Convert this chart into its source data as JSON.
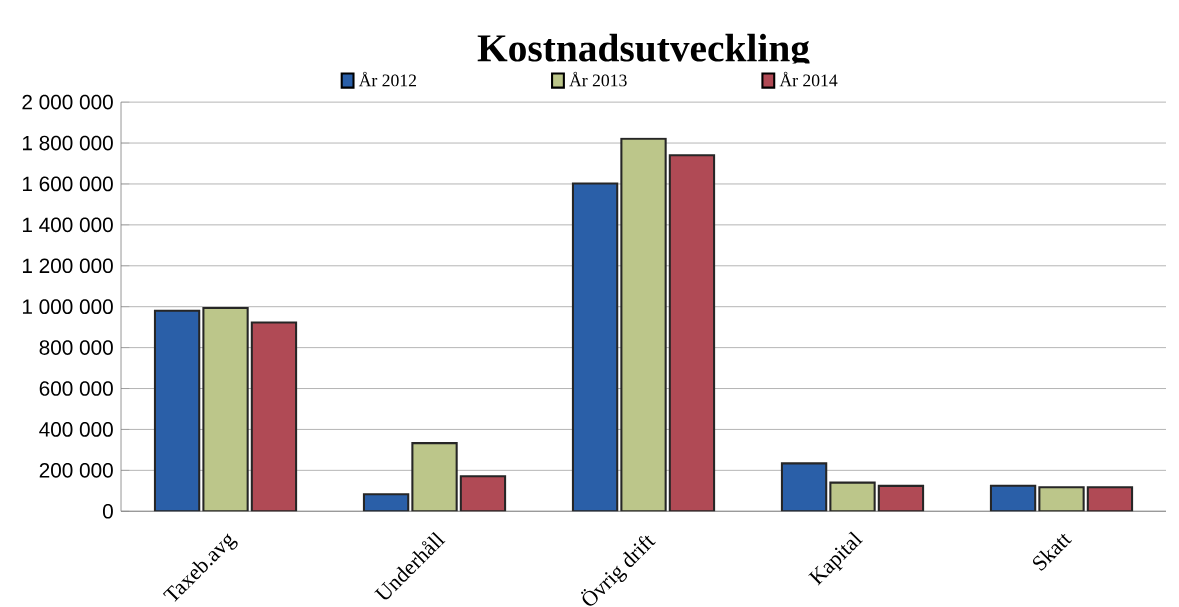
{
  "chart_data": {
    "type": "bar",
    "title": "Kostnadsutveckling",
    "categories": [
      "Taxeb.avg",
      "Underhåll",
      "Övrig drift",
      "Kapital",
      "Skatt"
    ],
    "series": [
      {
        "name": "År 2012",
        "color": "#2a5fa8",
        "values": [
          980000,
          83000,
          1602000,
          234000,
          125000
        ]
      },
      {
        "name": "År 2013",
        "color": "#bcc68a",
        "values": [
          994000,
          333000,
          1821000,
          140000,
          117000
        ]
      },
      {
        "name": "År 2014",
        "color": "#b04a55",
        "values": [
          923000,
          171000,
          1740000,
          124000,
          117000
        ]
      }
    ],
    "ylim": [
      0,
      2000000
    ],
    "yticks": [
      {
        "value": 0,
        "label": "0"
      },
      {
        "value": 200000,
        "label": "200 000"
      },
      {
        "value": 400000,
        "label": "400 000"
      },
      {
        "value": 600000,
        "label": "600 000"
      },
      {
        "value": 800000,
        "label": "800 000"
      },
      {
        "value": 1000000,
        "label": "1 000 000"
      },
      {
        "value": 1200000,
        "label": "1 200 000"
      },
      {
        "value": 1400000,
        "label": "1 400 000"
      },
      {
        "value": 1600000,
        "label": "1 600 000"
      },
      {
        "value": 1800000,
        "label": "1 800 000"
      },
      {
        "value": 2000000,
        "label": "2 000 000"
      }
    ],
    "grid": "y",
    "legend": "top"
  }
}
